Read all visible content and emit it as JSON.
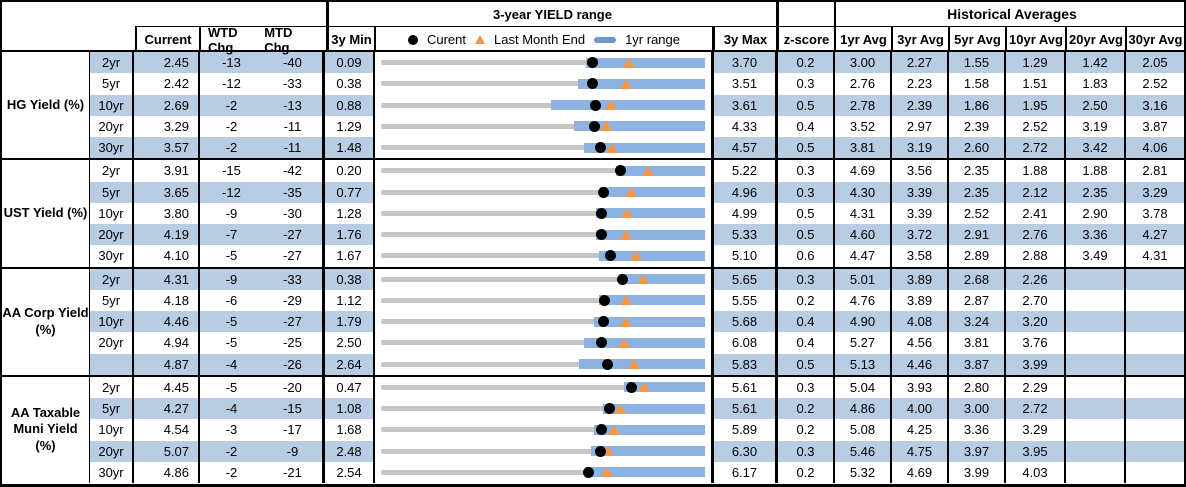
{
  "header": {
    "range_title": "3-year YIELD range",
    "hist_title": "Historical Averages",
    "col_current": "Current",
    "col_wtd": "WTD Chg",
    "col_mtd": "MTD Chg",
    "col_min": "3y Min",
    "col_max": "3y Max",
    "col_z": "z-score",
    "avg_cols": [
      "1yr Avg",
      "3yr Avg",
      "5yr Avg",
      "10yr Avg",
      "20yr Avg",
      "30yr Avg"
    ],
    "legend": {
      "current": "Curent",
      "last_month": "Last Month End",
      "range": "1yr range"
    }
  },
  "colors": {
    "row_shade": "#b8cce4",
    "bar_blue": "#8db3e2",
    "legend_bar_blue": "#6b96cc",
    "range_gray": "#c6c6c6",
    "marker_orange": "#f79646",
    "marker_black": "#000000",
    "border": "#000000"
  },
  "chart_data": {
    "type": "table",
    "title": "3-year YIELD range",
    "legend": [
      "Curent",
      "Last Month End",
      "1yr range"
    ],
    "columns": [
      "Current",
      "WTD Chg",
      "MTD Chg",
      "3y Min",
      "3y Max",
      "z-score",
      "1yr Avg",
      "3yr Avg",
      "5yr Avg",
      "10yr Avg",
      "20yr Avg",
      "30yr Avg"
    ],
    "groups": [
      {
        "label": "HG Yield (%)",
        "rows": [
          {
            "tenor": "2yr",
            "current": "2.45",
            "wtd": "-13",
            "mtd": "-40",
            "min": "0.09",
            "max": "3.70",
            "z": "0.2",
            "avgs": [
              "3.00",
              "2.27",
              "1.55",
              "1.29",
              "1.42",
              "2.05"
            ],
            "plot": {
              "min": 0.09,
              "max": 3.7,
              "current": 2.45,
              "last_month_end": 2.85,
              "yr1_low": 2.37,
              "yr1_high": 3.7
            }
          },
          {
            "tenor": "5yr",
            "current": "2.42",
            "wtd": "-12",
            "mtd": "-33",
            "min": "0.38",
            "max": "3.51",
            "z": "0.3",
            "avgs": [
              "2.76",
              "2.23",
              "1.58",
              "1.51",
              "1.83",
              "2.52"
            ],
            "plot": {
              "min": 0.38,
              "max": 3.51,
              "current": 2.42,
              "last_month_end": 2.75,
              "yr1_low": 2.28,
              "yr1_high": 3.51
            }
          },
          {
            "tenor": "10yr",
            "current": "2.69",
            "wtd": "-2",
            "mtd": "-13",
            "min": "0.88",
            "max": "3.61",
            "z": "0.5",
            "avgs": [
              "2.78",
              "2.39",
              "1.86",
              "1.95",
              "2.50",
              "3.16"
            ],
            "plot": {
              "min": 0.88,
              "max": 3.61,
              "current": 2.69,
              "last_month_end": 2.82,
              "yr1_low": 2.31,
              "yr1_high": 3.61
            }
          },
          {
            "tenor": "20yr",
            "current": "3.29",
            "wtd": "-2",
            "mtd": "-11",
            "min": "1.29",
            "max": "4.33",
            "z": "0.4",
            "avgs": [
              "3.52",
              "2.97",
              "2.39",
              "2.52",
              "3.19",
              "3.87"
            ],
            "plot": {
              "min": 1.29,
              "max": 4.33,
              "current": 3.29,
              "last_month_end": 3.4,
              "yr1_low": 3.1,
              "yr1_high": 4.33
            }
          },
          {
            "tenor": "30yr",
            "current": "3.57",
            "wtd": "-2",
            "mtd": "-11",
            "min": "1.48",
            "max": "4.57",
            "z": "0.5",
            "avgs": [
              "3.81",
              "3.19",
              "2.60",
              "2.72",
              "3.42",
              "4.06"
            ],
            "plot": {
              "min": 1.48,
              "max": 4.57,
              "current": 3.57,
              "last_month_end": 3.68,
              "yr1_low": 3.42,
              "yr1_high": 4.57
            }
          }
        ]
      },
      {
        "label": "UST Yield (%)",
        "rows": [
          {
            "tenor": "2yr",
            "current": "3.91",
            "wtd": "-15",
            "mtd": "-42",
            "min": "0.20",
            "max": "5.22",
            "z": "0.3",
            "avgs": [
              "4.69",
              "3.56",
              "2.35",
              "1.88",
              "1.88",
              "2.81"
            ],
            "plot": {
              "min": 0.2,
              "max": 5.22,
              "current": 3.91,
              "last_month_end": 4.33,
              "yr1_low": 3.84,
              "yr1_high": 5.22
            }
          },
          {
            "tenor": "5yr",
            "current": "3.65",
            "wtd": "-12",
            "mtd": "-35",
            "min": "0.77",
            "max": "4.96",
            "z": "0.3",
            "avgs": [
              "4.30",
              "3.39",
              "2.35",
              "2.12",
              "2.35",
              "3.29"
            ],
            "plot": {
              "min": 0.77,
              "max": 4.96,
              "current": 3.65,
              "last_month_end": 4.0,
              "yr1_low": 3.6,
              "yr1_high": 4.96
            }
          },
          {
            "tenor": "10yr",
            "current": "3.80",
            "wtd": "-9",
            "mtd": "-30",
            "min": "1.28",
            "max": "4.99",
            "z": "0.5",
            "avgs": [
              "4.31",
              "3.39",
              "2.52",
              "2.41",
              "2.90",
              "3.78"
            ],
            "plot": {
              "min": 1.28,
              "max": 4.99,
              "current": 3.8,
              "last_month_end": 4.1,
              "yr1_low": 3.74,
              "yr1_high": 4.99
            }
          },
          {
            "tenor": "20yr",
            "current": "4.19",
            "wtd": "-7",
            "mtd": "-27",
            "min": "1.76",
            "max": "5.33",
            "z": "0.5",
            "avgs": [
              "4.60",
              "3.72",
              "2.91",
              "2.76",
              "3.36",
              "4.27"
            ],
            "plot": {
              "min": 1.76,
              "max": 5.33,
              "current": 4.19,
              "last_month_end": 4.46,
              "yr1_low": 4.13,
              "yr1_high": 5.33
            }
          },
          {
            "tenor": "30yr",
            "current": "4.10",
            "wtd": "-5",
            "mtd": "-27",
            "min": "1.67",
            "max": "5.10",
            "z": "0.6",
            "avgs": [
              "4.47",
              "3.58",
              "2.89",
              "2.88",
              "3.49",
              "4.31"
            ],
            "plot": {
              "min": 1.67,
              "max": 5.1,
              "current": 4.1,
              "last_month_end": 4.37,
              "yr1_low": 3.98,
              "yr1_high": 5.1
            }
          }
        ]
      },
      {
        "label": "AA Corp Yield\n(%)",
        "rows": [
          {
            "tenor": "2yr",
            "current": "4.31",
            "wtd": "-9",
            "mtd": "-33",
            "min": "0.38",
            "max": "5.65",
            "z": "0.3",
            "avgs": [
              "5.01",
              "3.89",
              "2.68",
              "2.26",
              "",
              ""
            ],
            "plot": {
              "min": 0.38,
              "max": 5.65,
              "current": 4.31,
              "last_month_end": 4.64,
              "yr1_low": 4.25,
              "yr1_high": 5.65
            }
          },
          {
            "tenor": "5yr",
            "current": "4.18",
            "wtd": "-6",
            "mtd": "-29",
            "min": "1.12",
            "max": "5.55",
            "z": "0.2",
            "avgs": [
              "4.76",
              "3.89",
              "2.87",
              "2.70",
              "",
              ""
            ],
            "plot": {
              "min": 1.12,
              "max": 5.55,
              "current": 4.18,
              "last_month_end": 4.47,
              "yr1_low": 4.1,
              "yr1_high": 5.55
            }
          },
          {
            "tenor": "10yr",
            "current": "4.46",
            "wtd": "-5",
            "mtd": "-27",
            "min": "1.79",
            "max": "5.68",
            "z": "0.4",
            "avgs": [
              "4.90",
              "4.08",
              "3.24",
              "3.20",
              "",
              ""
            ],
            "plot": {
              "min": 1.79,
              "max": 5.68,
              "current": 4.46,
              "last_month_end": 4.73,
              "yr1_low": 4.35,
              "yr1_high": 5.68
            }
          },
          {
            "tenor": "20yr",
            "current": "4.94",
            "wtd": "-5",
            "mtd": "-25",
            "min": "2.50",
            "max": "6.08",
            "z": "0.4",
            "avgs": [
              "5.27",
              "4.56",
              "3.81",
              "3.76",
              "",
              ""
            ],
            "plot": {
              "min": 2.5,
              "max": 6.08,
              "current": 4.94,
              "last_month_end": 5.19,
              "yr1_low": 4.74,
              "yr1_high": 6.08
            }
          },
          {
            "tenor": "",
            "current": "4.87",
            "wtd": "-4",
            "mtd": "-26",
            "min": "2.64",
            "max": "5.83",
            "z": "0.5",
            "avgs": [
              "5.13",
              "4.46",
              "3.87",
              "3.99",
              "",
              ""
            ],
            "plot": {
              "min": 2.64,
              "max": 5.83,
              "current": 4.87,
              "last_month_end": 5.13,
              "yr1_low": 4.59,
              "yr1_high": 5.83
            }
          }
        ]
      },
      {
        "label": "AA Taxable\nMuni Yield\n(%)",
        "rows": [
          {
            "tenor": "2yr",
            "current": "4.45",
            "wtd": "-5",
            "mtd": "-20",
            "min": "0.47",
            "max": "5.61",
            "z": "0.3",
            "avgs": [
              "5.04",
              "3.93",
              "2.80",
              "2.29",
              "",
              ""
            ],
            "plot": {
              "min": 0.47,
              "max": 5.61,
              "current": 4.45,
              "last_month_end": 4.65,
              "yr1_low": 4.32,
              "yr1_high": 5.61
            }
          },
          {
            "tenor": "5yr",
            "current": "4.27",
            "wtd": "-4",
            "mtd": "-15",
            "min": "1.08",
            "max": "5.61",
            "z": "0.2",
            "avgs": [
              "4.86",
              "4.00",
              "3.00",
              "2.72",
              "",
              ""
            ],
            "plot": {
              "min": 1.08,
              "max": 5.61,
              "current": 4.27,
              "last_month_end": 4.42,
              "yr1_low": 4.18,
              "yr1_high": 5.61
            }
          },
          {
            "tenor": "10yr",
            "current": "4.54",
            "wtd": "-3",
            "mtd": "-17",
            "min": "1.68",
            "max": "5.89",
            "z": "0.2",
            "avgs": [
              "5.08",
              "4.25",
              "3.36",
              "3.29",
              "",
              ""
            ],
            "plot": {
              "min": 1.68,
              "max": 5.89,
              "current": 4.54,
              "last_month_end": 4.71,
              "yr1_low": 4.45,
              "yr1_high": 5.89
            }
          },
          {
            "tenor": "20yr",
            "current": "5.07",
            "wtd": "-2",
            "mtd": "-9",
            "min": "2.48",
            "max": "6.30",
            "z": "0.3",
            "avgs": [
              "5.46",
              "4.75",
              "3.97",
              "3.95",
              "",
              ""
            ],
            "plot": {
              "min": 2.48,
              "max": 6.3,
              "current": 5.07,
              "last_month_end": 5.16,
              "yr1_low": 4.96,
              "yr1_high": 6.3
            }
          },
          {
            "tenor": "30yr",
            "current": "4.86",
            "wtd": "-2",
            "mtd": "-21",
            "min": "2.54",
            "max": "6.17",
            "z": "0.2",
            "avgs": [
              "5.32",
              "4.69",
              "3.99",
              "4.03",
              "",
              ""
            ],
            "plot": {
              "min": 2.54,
              "max": 6.17,
              "current": 4.86,
              "last_month_end": 5.07,
              "yr1_low": 4.82,
              "yr1_high": 6.17
            }
          }
        ]
      }
    ]
  }
}
